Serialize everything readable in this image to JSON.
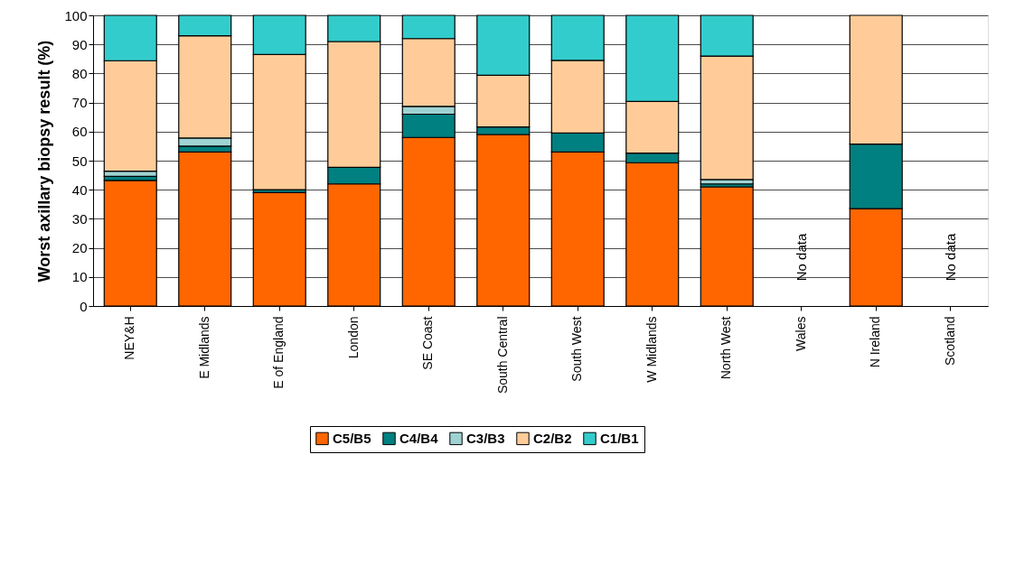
{
  "chart_data": {
    "type": "bar",
    "stacked": true,
    "ylabel": "Worst axillary biopsy result (%)",
    "categories": [
      "NEY&H",
      "E Midlands",
      "E of England",
      "London",
      "SE Coast",
      "South Central",
      "South West",
      "W Midlands",
      "North West",
      "Wales",
      "N Ireland",
      "Scotland"
    ],
    "series": [
      {
        "name": "C5/B5",
        "color": "#ff6600",
        "values": [
          43.2,
          53,
          39,
          42,
          58,
          59,
          53,
          49.3,
          41,
          null,
          33.5,
          null
        ]
      },
      {
        "name": "C4/B4",
        "color": "#008080",
        "values": [
          1.4,
          2,
          1,
          5.7,
          8,
          2.6,
          6.5,
          3.3,
          1,
          null,
          22.2,
          null
        ]
      },
      {
        "name": "C3/B3",
        "color": "#9fd3d3",
        "values": [
          1.8,
          2.8,
          0,
          0,
          2.7,
          0,
          0,
          0,
          1.5,
          null,
          0,
          null
        ]
      },
      {
        "name": "C2/B2",
        "color": "#ffcc99",
        "values": [
          38,
          35.2,
          46.5,
          43.3,
          23.3,
          17.8,
          25,
          17.8,
          42.5,
          null,
          44.3,
          null
        ]
      },
      {
        "name": "C1/B1",
        "color": "#33cccc",
        "values": [
          15.6,
          7,
          13.5,
          9,
          8,
          20.6,
          15.5,
          29.6,
          14,
          null,
          0,
          null
        ]
      }
    ],
    "ylim": [
      0,
      100
    ],
    "yticks": [
      0,
      10,
      20,
      30,
      40,
      50,
      60,
      70,
      80,
      90,
      100
    ],
    "grid": "y",
    "legend": "bottom",
    "annotations": [
      "No data",
      "No data"
    ]
  }
}
